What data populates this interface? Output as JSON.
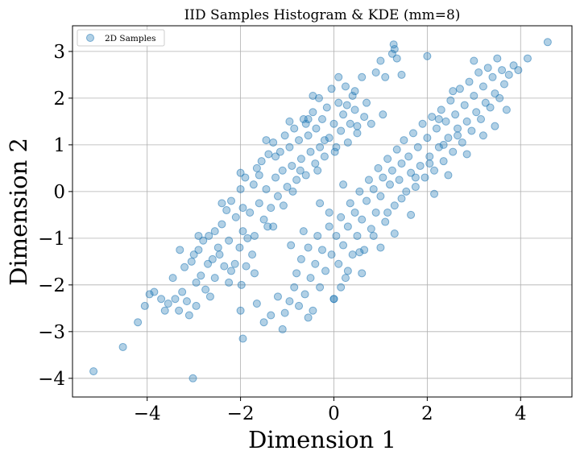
{
  "chart_data": {
    "type": "scatter",
    "title": "IID Samples Histogram & KDE (mm=8)",
    "xlabel": "Dimension 1",
    "ylabel": "Dimension 2",
    "xlim": [
      -5.6,
      5.1
    ],
    "ylim": [
      -4.4,
      3.55
    ],
    "xticks": [
      -4,
      -2,
      0,
      2,
      4
    ],
    "yticks": [
      -4,
      -3,
      -2,
      -1,
      0,
      1,
      2,
      3
    ],
    "xtick_labels": [
      "−4",
      "−2",
      "0",
      "2",
      "4"
    ],
    "ytick_labels": [
      "−4",
      "−3",
      "−2",
      "−1",
      "0",
      "1",
      "2",
      "3"
    ],
    "grid": true,
    "legend_position": "top-left",
    "marker_color": "#1f77b4",
    "marker_alpha": 0.35,
    "series": [
      {
        "name": "2D Samples",
        "points": [
          [
            -5.15,
            -3.85
          ],
          [
            -4.52,
            -3.33
          ],
          [
            -4.2,
            -2.8
          ],
          [
            -4.05,
            -2.45
          ],
          [
            -3.95,
            -2.2
          ],
          [
            -3.85,
            -2.15
          ],
          [
            -3.62,
            -2.55
          ],
          [
            -3.55,
            -2.4
          ],
          [
            -3.45,
            -1.85
          ],
          [
            -3.4,
            -2.3
          ],
          [
            -3.32,
            -2.55
          ],
          [
            -3.25,
            -2.15
          ],
          [
            -3.2,
            -1.62
          ],
          [
            -3.15,
            -2.35
          ],
          [
            -3.05,
            -1.5
          ],
          [
            -3.02,
            -4.0
          ],
          [
            -3.0,
            -1.35
          ],
          [
            -2.95,
            -1.95
          ],
          [
            -2.95,
            -2.45
          ],
          [
            -2.9,
            -1.25
          ],
          [
            -2.85,
            -1.8
          ],
          [
            -2.8,
            -1.05
          ],
          [
            -2.75,
            -2.1
          ],
          [
            -2.7,
            -1.55
          ],
          [
            -2.68,
            -0.95
          ],
          [
            -2.6,
            -1.45
          ],
          [
            -2.55,
            -1.85
          ],
          [
            -2.55,
            -0.85
          ],
          [
            -2.48,
            -1.2
          ],
          [
            -2.4,
            -0.7
          ],
          [
            -2.35,
            -1.6
          ],
          [
            -2.3,
            -0.4
          ],
          [
            -2.25,
            -1.05
          ],
          [
            -2.2,
            -0.2
          ],
          [
            -2.12,
            -1.55
          ],
          [
            -2.1,
            -0.55
          ],
          [
            -2.02,
            -1.2
          ],
          [
            -2.0,
            0.05
          ],
          [
            -1.95,
            -0.85
          ],
          [
            -1.9,
            0.3
          ],
          [
            -1.88,
            -1.6
          ],
          [
            -1.85,
            -1.0
          ],
          [
            -1.8,
            -0.45
          ],
          [
            -1.72,
            0.15
          ],
          [
            -1.7,
            -0.95
          ],
          [
            -1.65,
            0.5
          ],
          [
            -1.6,
            -0.25
          ],
          [
            -1.55,
            0.65
          ],
          [
            -1.5,
            -0.6
          ],
          [
            -1.45,
            0.05
          ],
          [
            -1.4,
            0.8
          ],
          [
            -1.35,
            -0.35
          ],
          [
            -1.3,
            1.05
          ],
          [
            -1.25,
            0.3
          ],
          [
            -1.2,
            -0.1
          ],
          [
            -1.15,
            0.85
          ],
          [
            -1.1,
            0.45
          ],
          [
            -1.05,
            1.2
          ],
          [
            -1.0,
            0.1
          ],
          [
            -0.95,
            0.95
          ],
          [
            -0.9,
            0.55
          ],
          [
            -0.85,
            1.35
          ],
          [
            -0.8,
            0.25
          ],
          [
            -0.75,
            1.1
          ],
          [
            -0.7,
            0.7
          ],
          [
            -0.65,
            1.55
          ],
          [
            -0.6,
            0.35
          ],
          [
            -0.55,
            1.2
          ],
          [
            -0.5,
            0.85
          ],
          [
            -0.45,
            1.7
          ],
          [
            -0.4,
            0.6
          ],
          [
            -0.38,
            1.35
          ],
          [
            -0.32,
            2.0
          ],
          [
            -0.3,
            0.95
          ],
          [
            -0.25,
            1.55
          ],
          [
            -0.2,
            0.75
          ],
          [
            -0.15,
            1.8
          ],
          [
            -0.1,
            1.15
          ],
          [
            -0.05,
            2.2
          ],
          [
            0.0,
            1.45
          ],
          [
            0.05,
            0.95
          ],
          [
            0.1,
            1.9
          ],
          [
            0.15,
            1.3
          ],
          [
            0.2,
            1.65
          ],
          [
            0.25,
            2.25
          ],
          [
            0.3,
            1.05
          ],
          [
            0.35,
            1.45
          ],
          [
            0.4,
            2.05
          ],
          [
            0.45,
            1.75
          ],
          [
            0.5,
            1.25
          ],
          [
            0.6,
            2.45
          ],
          [
            0.65,
            1.6
          ],
          [
            0.7,
            1.9
          ],
          [
            0.8,
            1.45
          ],
          [
            0.9,
            2.55
          ],
          [
            1.0,
            2.8
          ],
          [
            1.05,
            1.65
          ],
          [
            1.1,
            2.45
          ],
          [
            1.25,
            2.95
          ],
          [
            1.3,
            3.05
          ],
          [
            1.35,
            2.85
          ],
          [
            1.45,
            2.5
          ],
          [
            1.28,
            3.15
          ],
          [
            0.5,
            1.4
          ],
          [
            -0.55,
            1.55
          ],
          [
            -2.45,
            -1.35
          ],
          [
            -2.2,
            -1.7
          ],
          [
            -1.95,
            -0.35
          ],
          [
            -1.75,
            -1.35
          ],
          [
            -1.6,
            0.35
          ],
          [
            -1.42,
            -0.75
          ],
          [
            -1.25,
            0.75
          ],
          [
            -1.08,
            -0.3
          ],
          [
            -0.88,
            0.0
          ],
          [
            -0.72,
            0.45
          ],
          [
            -0.6,
            1.45
          ],
          [
            -0.35,
            0.45
          ],
          [
            -0.2,
            1.1
          ],
          [
            0.02,
            0.85
          ],
          [
            0.28,
            1.85
          ],
          [
            -3.1,
            -2.65
          ],
          [
            -2.65,
            -2.25
          ],
          [
            -2.25,
            -1.95
          ],
          [
            -1.7,
            -1.75
          ],
          [
            -1.3,
            -0.75
          ],
          [
            -3.7,
            -2.3
          ],
          [
            -3.3,
            -1.25
          ],
          [
            -2.9,
            -0.95
          ],
          [
            -2.4,
            -0.25
          ],
          [
            -2.0,
            0.4
          ],
          [
            -1.45,
            1.1
          ],
          [
            -0.95,
            1.5
          ],
          [
            -0.45,
            2.05
          ],
          [
            0.1,
            2.45
          ],
          [
            0.45,
            2.15
          ],
          [
            -1.98,
            -2.0
          ],
          [
            -1.5,
            -2.8
          ],
          [
            -1.35,
            -2.65
          ],
          [
            -1.2,
            -2.25
          ],
          [
            -1.1,
            -2.95
          ],
          [
            -1.05,
            -2.6
          ],
          [
            -0.95,
            -2.35
          ],
          [
            -0.85,
            -2.05
          ],
          [
            -0.8,
            -1.75
          ],
          [
            -0.75,
            -2.45
          ],
          [
            -0.7,
            -1.45
          ],
          [
            -0.62,
            -2.2
          ],
          [
            -0.55,
            -1.2
          ],
          [
            -0.5,
            -1.85
          ],
          [
            -0.45,
            -2.55
          ],
          [
            -0.4,
            -1.55
          ],
          [
            -0.35,
            -0.95
          ],
          [
            -0.3,
            -2.05
          ],
          [
            -0.25,
            -1.25
          ],
          [
            -0.18,
            -1.7
          ],
          [
            -0.1,
            -0.75
          ],
          [
            -0.05,
            -1.35
          ],
          [
            0.0,
            -2.3
          ],
          [
            0.05,
            -0.95
          ],
          [
            0.1,
            -1.55
          ],
          [
            0.15,
            -0.55
          ],
          [
            0.2,
            -1.15
          ],
          [
            0.25,
            -1.85
          ],
          [
            0.3,
            -0.75
          ],
          [
            0.35,
            -0.25
          ],
          [
            0.4,
            -1.35
          ],
          [
            0.45,
            -0.45
          ],
          [
            0.5,
            -0.95
          ],
          [
            0.55,
            0.0
          ],
          [
            0.6,
            -0.6
          ],
          [
            0.65,
            -1.25
          ],
          [
            0.7,
            -0.2
          ],
          [
            0.75,
            0.25
          ],
          [
            0.8,
            -0.8
          ],
          [
            0.85,
            0.05
          ],
          [
            0.9,
            -0.45
          ],
          [
            0.95,
            0.5
          ],
          [
            1.0,
            -0.1
          ],
          [
            1.05,
            0.3
          ],
          [
            1.1,
            -0.65
          ],
          [
            1.15,
            0.7
          ],
          [
            1.2,
            0.15
          ],
          [
            1.25,
            0.45
          ],
          [
            1.3,
            -0.3
          ],
          [
            1.35,
            0.9
          ],
          [
            1.4,
            0.25
          ],
          [
            1.45,
            0.6
          ],
          [
            1.5,
            1.1
          ],
          [
            1.55,
            0.0
          ],
          [
            1.6,
            0.75
          ],
          [
            1.65,
            0.4
          ],
          [
            1.7,
            1.25
          ],
          [
            1.75,
            0.1
          ],
          [
            1.8,
            0.95
          ],
          [
            1.85,
            0.55
          ],
          [
            1.9,
            1.45
          ],
          [
            1.95,
            0.3
          ],
          [
            2.0,
            1.15
          ],
          [
            2.05,
            0.75
          ],
          [
            2.1,
            1.6
          ],
          [
            2.15,
            0.45
          ],
          [
            2.2,
            1.35
          ],
          [
            2.25,
            0.95
          ],
          [
            2.3,
            1.75
          ],
          [
            2.35,
            0.65
          ],
          [
            2.4,
            1.5
          ],
          [
            2.45,
            1.15
          ],
          [
            2.5,
            1.95
          ],
          [
            2.55,
            0.85
          ],
          [
            2.6,
            1.65
          ],
          [
            2.65,
            1.35
          ],
          [
            2.7,
            2.2
          ],
          [
            2.75,
            1.05
          ],
          [
            2.8,
            1.85
          ],
          [
            2.85,
            1.5
          ],
          [
            2.9,
            2.35
          ],
          [
            2.95,
            1.3
          ],
          [
            3.0,
            2.05
          ],
          [
            3.05,
            1.7
          ],
          [
            3.1,
            2.55
          ],
          [
            3.15,
            1.55
          ],
          [
            3.2,
            2.25
          ],
          [
            3.25,
            1.9
          ],
          [
            3.3,
            2.65
          ],
          [
            3.35,
            1.8
          ],
          [
            3.4,
            2.45
          ],
          [
            3.45,
            2.1
          ],
          [
            3.5,
            2.85
          ],
          [
            3.55,
            2.0
          ],
          [
            3.6,
            2.6
          ],
          [
            3.65,
            2.3
          ],
          [
            3.75,
            2.5
          ],
          [
            3.85,
            2.7
          ],
          [
            3.95,
            2.6
          ],
          [
            4.15,
            2.85
          ],
          [
            4.58,
            3.2
          ],
          [
            3.0,
            2.8
          ],
          [
            2.0,
            2.9
          ],
          [
            2.55,
            2.15
          ],
          [
            2.25,
            1.55
          ],
          [
            0.3,
            -1.7
          ],
          [
            0.15,
            -2.05
          ],
          [
            0.55,
            -1.3
          ],
          [
            0.85,
            -0.95
          ],
          [
            1.15,
            -0.45
          ],
          [
            1.45,
            -0.15
          ],
          [
            1.75,
            0.3
          ],
          [
            2.05,
            0.6
          ],
          [
            2.35,
            1.0
          ],
          [
            2.65,
            1.2
          ],
          [
            -1.95,
            -3.15
          ],
          [
            -2.0,
            -2.55
          ],
          [
            -1.65,
            -2.4
          ],
          [
            -0.55,
            -2.7
          ],
          [
            0.0,
            -2.3
          ],
          [
            -0.92,
            -1.15
          ],
          [
            -0.65,
            -0.85
          ],
          [
            -0.3,
            -0.25
          ],
          [
            -0.1,
            -0.45
          ],
          [
            0.2,
            0.15
          ],
          [
            0.6,
            -1.75
          ],
          [
            1.0,
            -1.2
          ],
          [
            1.3,
            -0.9
          ],
          [
            1.65,
            -0.5
          ],
          [
            2.15,
            -0.05
          ],
          [
            2.45,
            0.35
          ],
          [
            2.85,
            0.8
          ],
          [
            3.2,
            1.2
          ],
          [
            3.45,
            1.4
          ],
          [
            3.7,
            1.75
          ]
        ]
      }
    ]
  }
}
